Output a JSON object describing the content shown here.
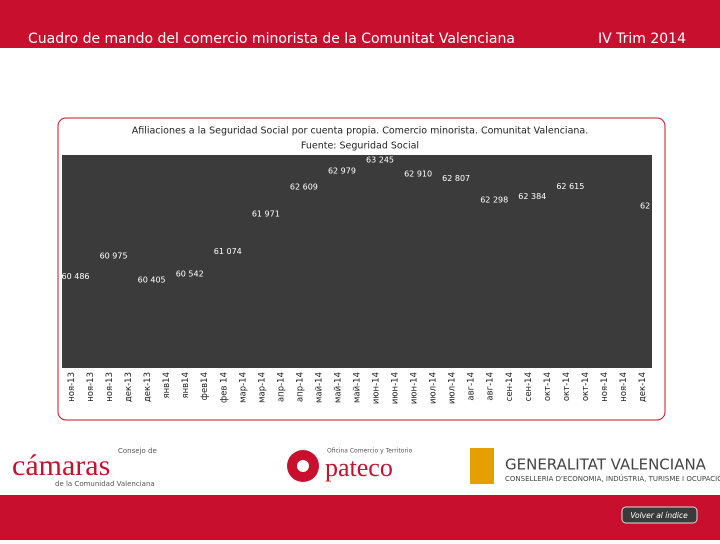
{
  "header": {
    "title": "Cuadro de mando del comercio minorista de la Comunitat Valenciana",
    "period": "IV Trim 2014"
  },
  "chart_data": {
    "type": "line",
    "title": "Afiliaciones a la Seguridad Social por cuenta propia. Comercio minorista. Comunitat Valenciana.",
    "subtitle": "Fuente: Seguridad Social",
    "categories": [
      "ноя-13",
      "ноя-13",
      "ноя-13",
      "дек-13",
      "дек-13",
      "янв14",
      "янв14",
      "фев14",
      "фев 14",
      "мар-14",
      "мар-14",
      "апр-14",
      "апр-14",
      "май-14",
      "май-14",
      "май-14",
      "июн-14",
      "июн-14",
      "июн-14",
      "июл-14",
      "июл-14",
      "авг-14",
      "авг-14",
      "сен-14",
      "сен-14",
      "окт-14",
      "окт-14",
      "окт-14",
      "ноя-14",
      "ноя-14",
      "дек-14"
    ],
    "values": [
      60486,
      null,
      60975,
      null,
      60405,
      null,
      60542,
      null,
      61074,
      null,
      61971,
      null,
      62609,
      null,
      62979,
      null,
      63245,
      null,
      62910,
      null,
      62807,
      null,
      62298,
      null,
      62384,
      null,
      62615,
      null,
      null,
      null,
      null
    ],
    "value_labels": [
      "60 486",
      null,
      "60 975",
      null,
      "60 405",
      null,
      "60 542",
      null,
      "61 074",
      null,
      "61 971",
      null,
      "62 609",
      null,
      "62 979",
      null,
      "63 245",
      null,
      "62 910",
      null,
      "62 807",
      null,
      "62 298",
      null,
      "62 384",
      null,
      "62 615",
      null,
      null,
      null,
      null
    ],
    "annotations": [
      "62"
    ]
  },
  "footer": {
    "camaras_top": "Consejo de",
    "camaras": "cámaras",
    "camaras_sub": "de la Comunidad Valenciana",
    "pateco_top": "Oficina Comercio y Territorio",
    "pateco": "pateco",
    "gv": "GENERALITAT VALENCIANA",
    "gv_sub": "CONSELLERIA D'ECONOMIA, INDÚSTRIA, TURISME I OCUPACIÓ",
    "button": "Volver al índice"
  }
}
